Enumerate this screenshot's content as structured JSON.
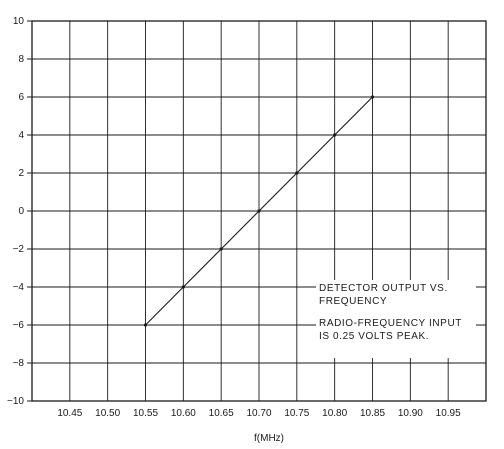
{
  "chart_data": {
    "type": "line",
    "title": "",
    "xlabel": "f(MHz)",
    "ylabel": "",
    "x_ticks": [
      "10.45",
      "10.50",
      "10.55",
      "10.60",
      "10.65",
      "10.70",
      "10.75",
      "10.80",
      "10.85",
      "10.90",
      "10.95"
    ],
    "y_ticks": [
      "10",
      "8",
      "6",
      "4",
      "2",
      "0",
      "−2",
      "−4",
      "−6",
      "−8",
      "−10"
    ],
    "xlim": [
      10.4,
      11.0
    ],
    "ylim": [
      -10,
      10
    ],
    "grid": true,
    "series": [
      {
        "x": [
          10.55,
          10.6,
          10.65,
          10.7,
          10.75,
          10.8,
          10.85
        ],
        "y": [
          -6,
          -4,
          -2,
          0,
          2,
          4,
          6
        ]
      }
    ],
    "annotations": [
      {
        "lines": [
          "DETECTOR OUTPUT VS.",
          "FREQUENCY"
        ]
      },
      {
        "lines": [
          "RADIO-FREQUENCY INPUT",
          "IS 0.25 VOLTS PEAK."
        ]
      }
    ]
  }
}
